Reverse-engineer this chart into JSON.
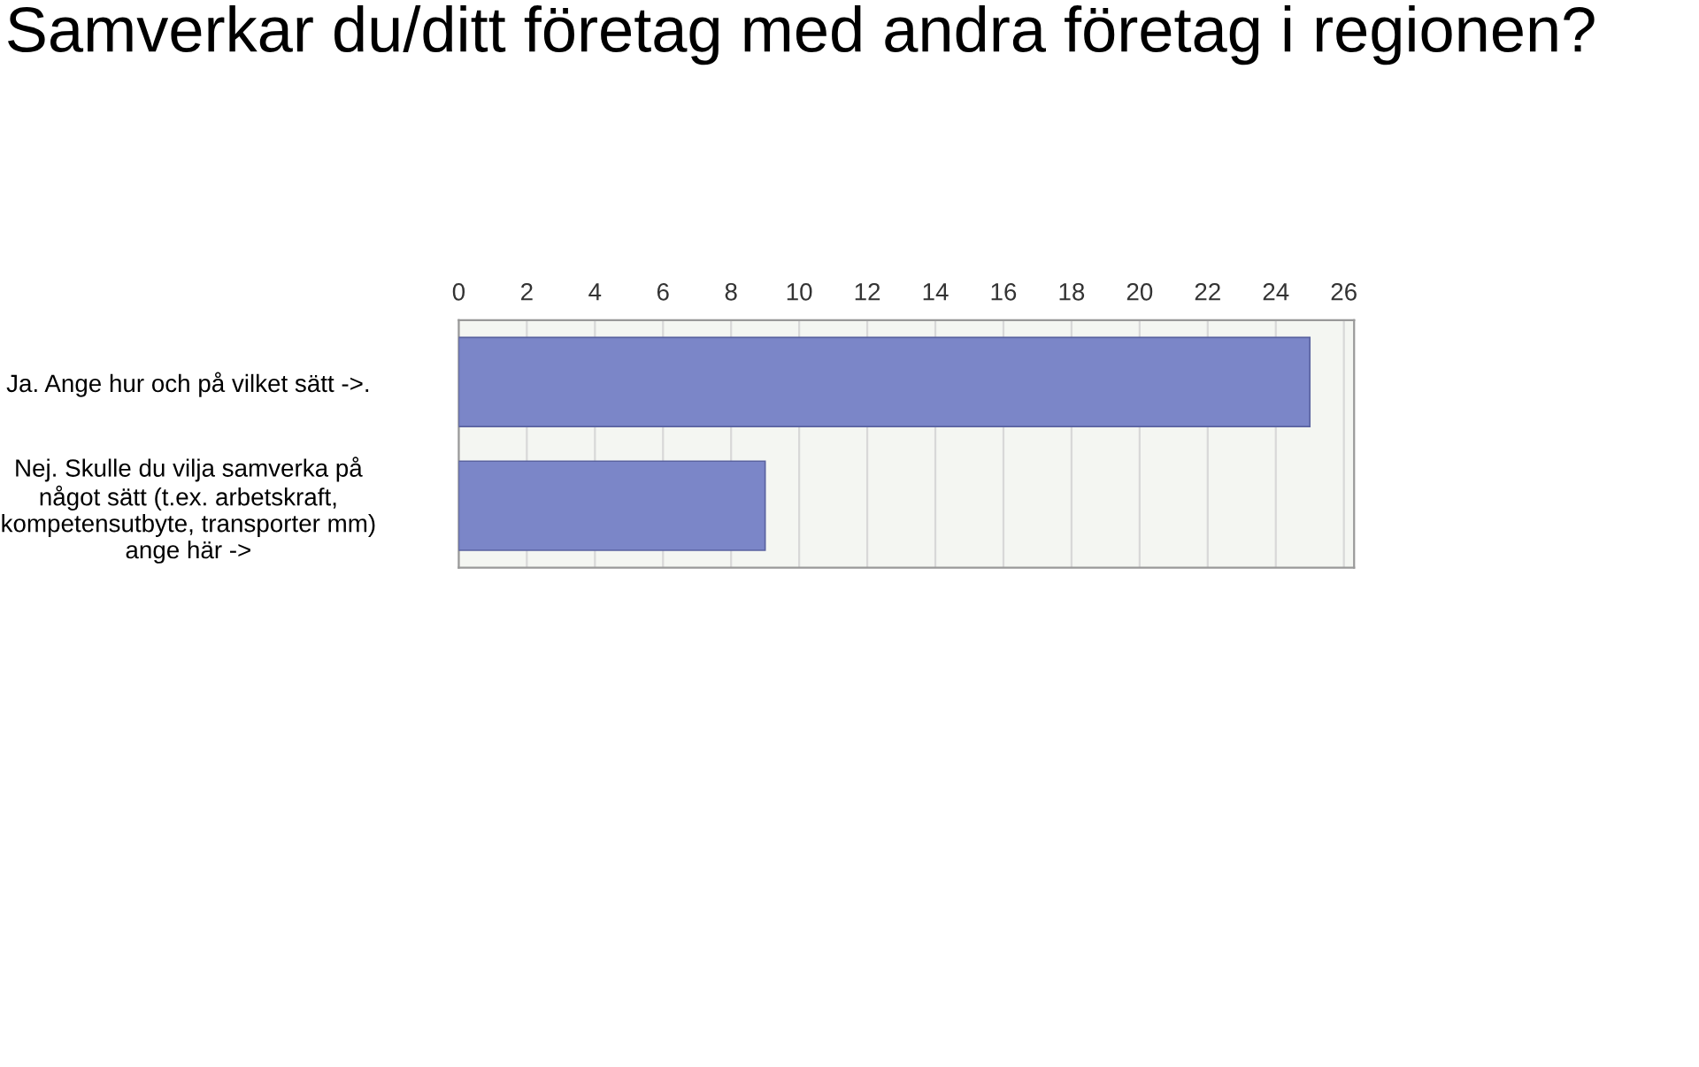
{
  "chart_data": {
    "type": "bar",
    "orientation": "horizontal",
    "title": "Samverkar du/ditt företag med andra företag i regionen?",
    "categories": [
      "Ja. Ange hur och på vilket sätt ->.",
      "Nej. Skulle du vilja samverka på\nnågot sätt (t.ex. arbetskraft,\nkompetensutbyte, transporter mm)\nange här ->"
    ],
    "values": [
      25,
      9
    ],
    "color": "#7b86c8",
    "xlim": [
      0,
      26.3
    ],
    "xticks": [
      0,
      2,
      4,
      6,
      8,
      10,
      12,
      14,
      16,
      18,
      20,
      22,
      24,
      26
    ],
    "grid": "x"
  }
}
